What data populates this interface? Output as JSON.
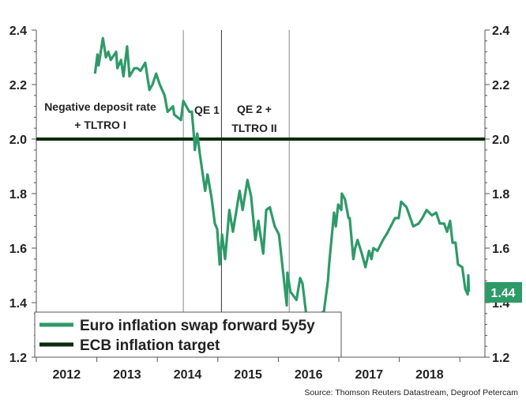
{
  "chart_data": {
    "type": "line",
    "title": "",
    "xlabel": "",
    "ylabel": "",
    "xlim": [
      2012,
      2019.42
    ],
    "ylim": [
      1.2,
      2.4
    ],
    "x_tick_labels": [
      "2012",
      "2013",
      "2014",
      "2015",
      "2016",
      "2017",
      "2018"
    ],
    "y_ticks": [
      1.2,
      1.4,
      1.6,
      1.8,
      2.0,
      2.2,
      2.4
    ],
    "y_tick_labels": [
      "1.2",
      "1.4",
      "1.6",
      "1.8",
      "2.0",
      "2.2",
      "2.4"
    ],
    "grid": false,
    "legend_position": "bottom-left",
    "series": [
      {
        "name": "Euro inflation swap forward 5y5y",
        "color": "#2e9a68",
        "x": [
          2012.97,
          2013.01,
          2013.03,
          2013.1,
          2013.15,
          2013.19,
          2013.23,
          2013.32,
          2013.34,
          2013.4,
          2013.44,
          2013.5,
          2013.54,
          2013.62,
          2013.67,
          2013.72,
          2013.8,
          2013.87,
          2013.92,
          2013.98,
          2014.04,
          2014.12,
          2014.17,
          2014.26,
          2014.28,
          2014.39,
          2014.43,
          2014.53,
          2014.57,
          2014.61,
          2014.62,
          2014.66,
          2014.7,
          2014.79,
          2014.83,
          2014.9,
          2014.95,
          2014.99,
          2015.03,
          2015.07,
          2015.12,
          2015.19,
          2015.25,
          2015.36,
          2015.41,
          2015.49,
          2015.55,
          2015.62,
          2015.67,
          2015.75,
          2015.8,
          2015.86,
          2015.94,
          2016.01,
          2016.14,
          2016.15,
          2016.2,
          2016.3,
          2016.36,
          2016.4,
          2016.46,
          2016.56,
          2016.65,
          2016.73,
          2016.75,
          2016.82,
          2016.84,
          2016.92,
          2016.95,
          2016.99,
          2017.04,
          2017.05,
          2017.1,
          2017.16,
          2017.18,
          2017.24,
          2017.27,
          2017.31,
          2017.38,
          2017.44,
          2017.5,
          2017.54,
          2017.57,
          2017.64,
          2017.73,
          2017.8,
          2017.93,
          2017.99,
          2018.03,
          2018.12,
          2018.23,
          2018.32,
          2018.38,
          2018.45,
          2018.54,
          2018.61,
          2018.67,
          2018.74,
          2018.79,
          2018.84,
          2018.88,
          2018.93,
          2018.97,
          2019.04,
          2019.09,
          2019.13,
          2019.14,
          2019.15
        ],
        "y": [
          2.24,
          2.31,
          2.27,
          2.37,
          2.3,
          2.32,
          2.29,
          2.32,
          2.26,
          2.29,
          2.23,
          2.34,
          2.23,
          2.26,
          2.26,
          2.25,
          2.28,
          2.18,
          2.2,
          2.24,
          2.2,
          2.16,
          2.1,
          2.12,
          2.09,
          2.07,
          2.14,
          2.1,
          2.1,
          2.0,
          1.96,
          2.02,
          1.95,
          1.81,
          1.87,
          1.78,
          1.69,
          1.67,
          1.54,
          1.65,
          1.56,
          1.74,
          1.66,
          1.81,
          1.74,
          1.85,
          1.79,
          1.63,
          1.7,
          1.58,
          1.74,
          1.75,
          1.68,
          1.65,
          1.39,
          1.51,
          1.44,
          1.41,
          1.49,
          1.47,
          1.36,
          1.29,
          1.28,
          1.365,
          1.36,
          1.48,
          1.54,
          1.73,
          1.68,
          1.76,
          1.74,
          1.8,
          1.78,
          1.71,
          1.71,
          1.56,
          1.6,
          1.63,
          1.58,
          1.53,
          1.59,
          1.56,
          1.6,
          1.59,
          1.63,
          1.655,
          1.71,
          1.71,
          1.77,
          1.75,
          1.68,
          1.69,
          1.71,
          1.74,
          1.72,
          1.73,
          1.69,
          1.69,
          1.66,
          1.7,
          1.62,
          1.62,
          1.54,
          1.53,
          1.45,
          1.43,
          1.5,
          1.44
        ]
      },
      {
        "name": "ECB inflation target",
        "color": "#0a2a0a",
        "x": [
          2012,
          2019.42
        ],
        "y": [
          2.0,
          2.0
        ]
      }
    ],
    "event_lines": [
      {
        "x": 2014.43,
        "label_lines": [
          "Negative deposit rate",
          "+ TLTRO I"
        ]
      },
      {
        "x": 2015.06,
        "label_lines": [
          "QE 1"
        ]
      },
      {
        "x": 2016.18,
        "label_lines": [
          "QE 2 +",
          "TLTRO II"
        ]
      }
    ],
    "last_value_label": "1.44",
    "source": "Source: Thomson Reuters Datastream, Degroof Petercam"
  }
}
